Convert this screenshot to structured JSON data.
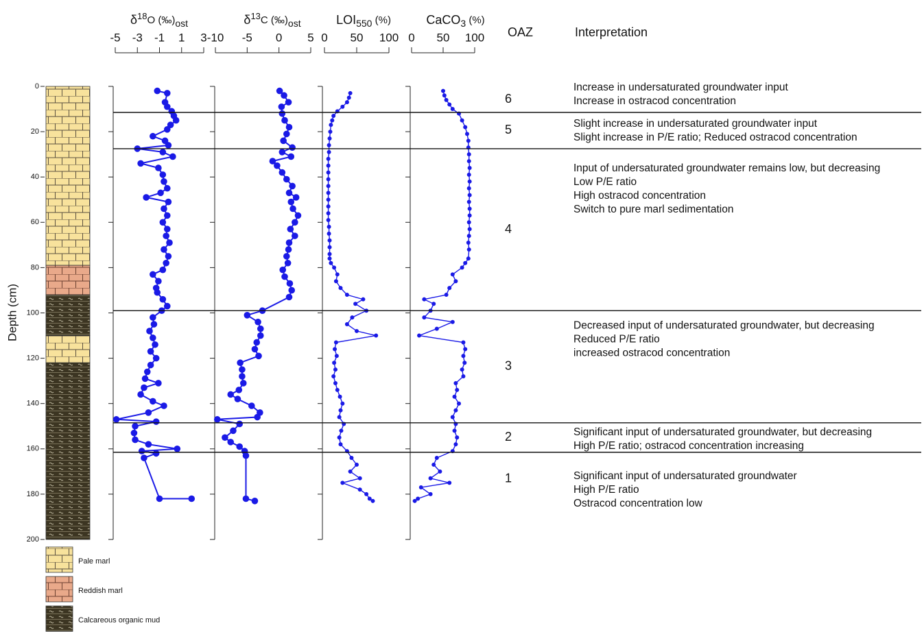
{
  "chart_data": [
    {
      "type": "line",
      "title": [
        "δ",
        "18",
        "O (‰)",
        "ost"
      ],
      "color": "#1a1ae6",
      "xlim": [
        -5,
        3
      ],
      "xticks": [
        -5,
        -3,
        -1,
        1,
        3
      ],
      "y": [
        2,
        3,
        7,
        9,
        11,
        13,
        15,
        17,
        19,
        22,
        24,
        26,
        27.5,
        29,
        31,
        34,
        36,
        39,
        42,
        45,
        47,
        49,
        51,
        54,
        57,
        60,
        63,
        66,
        69,
        72,
        75,
        78,
        81,
        83,
        86,
        89,
        91,
        94,
        97,
        99,
        102,
        105,
        108,
        111,
        114,
        117,
        120,
        123,
        126,
        129,
        131,
        133,
        136,
        139,
        141,
        144,
        147,
        148,
        150,
        153,
        156,
        158,
        160,
        161,
        162,
        164,
        182,
        182
      ],
      "values": [
        -1.2,
        -0.3,
        -0.5,
        -0.3,
        0.1,
        0.3,
        0.5,
        0,
        -0.3,
        -1.6,
        -0.5,
        -0.2,
        -3,
        -0.7,
        0.2,
        -2.7,
        -1.1,
        -0.7,
        -0.6,
        -0.3,
        -0.9,
        -2.2,
        -0.2,
        -0.6,
        -0.3,
        -0.7,
        -0.3,
        -0.4,
        -0.1,
        -0.6,
        -0.2,
        -0.4,
        -0.7,
        -1.6,
        -1.1,
        -1.3,
        -1.2,
        -0.7,
        -0.3,
        -0.8,
        -1.6,
        -1.5,
        -1.9,
        -1.6,
        -1.4,
        -1.8,
        -1.3,
        -1.8,
        -2.1,
        -2.3,
        -1.1,
        -2.4,
        -2.7,
        -1.6,
        -0.6,
        -2,
        -4.9,
        -1.3,
        -3.2,
        -3.3,
        -3.2,
        -2,
        0.6,
        -2.6,
        -1.3,
        -2.4,
        -1,
        1.9
      ]
    },
    {
      "type": "line",
      "title": [
        "δ",
        "13",
        "C (‰)",
        "ost"
      ],
      "color": "#1a1ae6",
      "xlim": [
        -10,
        5
      ],
      "xticks": [
        -10,
        -5,
        0,
        5
      ],
      "y": [
        2,
        4,
        7,
        9,
        12,
        15,
        18,
        21,
        24,
        27,
        29,
        31,
        33,
        35,
        38,
        41,
        44,
        47,
        49,
        51,
        54,
        57,
        60,
        63,
        66,
        69,
        72,
        75,
        78,
        81,
        84,
        87,
        90,
        93,
        99,
        101,
        104,
        107,
        110,
        113,
        116,
        119,
        122,
        125,
        128,
        131,
        134,
        136,
        138,
        141,
        144,
        146,
        147,
        149,
        152,
        155,
        157,
        159,
        161,
        163,
        182,
        183
      ],
      "values": [
        0.1,
        0.8,
        1.5,
        0.4,
        0.5,
        0.9,
        1.6,
        1.2,
        0.7,
        2.1,
        0.5,
        1.9,
        -1,
        -0.3,
        0.5,
        1.2,
        2.1,
        1.6,
        2.7,
        1.9,
        2.2,
        3,
        2.5,
        1.8,
        2.5,
        1.6,
        1.5,
        1.2,
        1.4,
        0.6,
        0.9,
        1.7,
        2,
        1.6,
        -2.6,
        -5,
        -3.3,
        -2.9,
        -2.9,
        -3.5,
        -3.8,
        -3.2,
        -6.1,
        -5.8,
        -5.8,
        -5.6,
        -6.3,
        -7.6,
        -6.5,
        -4.3,
        -3,
        -3.4,
        -9.7,
        -6.2,
        -7.2,
        -8.5,
        -7.6,
        -6.2,
        -5.4,
        -5.2,
        -5.2,
        -3.8
      ]
    },
    {
      "type": "line",
      "title": [
        "LOI",
        "550",
        " (%)"
      ],
      "color": "#1a1ae6",
      "xlim": [
        0,
        100
      ],
      "xticks": [
        0,
        50,
        100
      ],
      "y": [
        3,
        5,
        7,
        9,
        11,
        13,
        15,
        17,
        20,
        23,
        26,
        29,
        32,
        35,
        38,
        41,
        44,
        47,
        50,
        53,
        56,
        59,
        62,
        65,
        68,
        71,
        74,
        76,
        78,
        80,
        83,
        86,
        89,
        92,
        94,
        96,
        99,
        102,
        105,
        108,
        110,
        113,
        116,
        119,
        122,
        125,
        128,
        131,
        134,
        137,
        140,
        143,
        146,
        149,
        152,
        155,
        158,
        161,
        164,
        167,
        170,
        173,
        175,
        178,
        180,
        182,
        183
      ],
      "values": [
        40,
        38,
        35,
        28,
        20,
        14,
        12,
        10,
        9,
        8,
        7,
        7,
        6,
        6,
        6,
        6,
        6,
        6,
        6,
        6,
        6,
        6,
        7,
        7,
        8,
        8,
        8,
        8,
        10,
        15,
        20,
        18,
        25,
        35,
        60,
        48,
        65,
        43,
        35,
        50,
        80,
        18,
        16,
        19,
        15,
        17,
        14,
        17,
        20,
        24,
        28,
        25,
        23,
        30,
        26,
        23,
        25,
        35,
        42,
        50,
        40,
        55,
        28,
        55,
        65,
        70,
        75
      ]
    },
    {
      "type": "line",
      "title": [
        "CaCO",
        "3",
        " (%)"
      ],
      "color": "#1a1ae6",
      "xlim": [
        0,
        100
      ],
      "xticks": [
        0,
        50,
        100
      ],
      "y": [
        2,
        4,
        6,
        8,
        10,
        12,
        15,
        18,
        21,
        24,
        27,
        30,
        33,
        36,
        39,
        42,
        45,
        48,
        51,
        54,
        57,
        60,
        63,
        66,
        69,
        72,
        76,
        78,
        80,
        83,
        86,
        89,
        92,
        94,
        96,
        99,
        102,
        104,
        107,
        110,
        113,
        116,
        119,
        122,
        125,
        128,
        131,
        134,
        137,
        140,
        143,
        146,
        149,
        152,
        155,
        158,
        161,
        164,
        167,
        170,
        173,
        175,
        177,
        180,
        182,
        183
      ],
      "values": [
        50,
        52,
        55,
        60,
        65,
        75,
        80,
        85,
        88,
        90,
        90,
        91,
        91,
        92,
        91,
        92,
        91,
        92,
        91,
        92,
        92,
        91,
        92,
        91,
        90,
        91,
        90,
        85,
        80,
        65,
        70,
        60,
        55,
        20,
        35,
        30,
        20,
        65,
        40,
        12,
        82,
        85,
        82,
        84,
        80,
        82,
        70,
        72,
        68,
        75,
        70,
        65,
        70,
        68,
        72,
        70,
        65,
        40,
        35,
        45,
        30,
        60,
        15,
        30,
        10,
        5
      ]
    }
  ],
  "depth_axis": {
    "label": "Depth (cm)",
    "ylim": [
      0,
      200
    ],
    "yticks": [
      0,
      20,
      40,
      60,
      80,
      100,
      120,
      140,
      160,
      180,
      200
    ]
  },
  "lithology": {
    "legend": [
      "Pale marl",
      "Reddish marl",
      "Calcareous organic mud"
    ],
    "layers": [
      {
        "key": 0,
        "top": 0,
        "bottom": 79
      },
      {
        "key": 1,
        "top": 79,
        "bottom": 92
      },
      {
        "key": 2,
        "top": 92,
        "bottom": 110
      },
      {
        "key": 0,
        "top": 110,
        "bottom": 122
      },
      {
        "key": 2,
        "top": 122,
        "bottom": 200
      }
    ]
  },
  "zones": {
    "title": "OAZ",
    "header": "Interpretation",
    "boundaries": [
      11.5,
      27.5,
      99,
      148.5,
      161.5
    ],
    "items": [
      {
        "label": 6,
        "lines": [
          "Increase in undersaturated groundwater input",
          "Increase in ostracod concentration"
        ]
      },
      {
        "label": 5,
        "lines": [
          "Slight increase in undersaturated groundwater input",
          "Slight increase in P/E ratio; Reduced ostracod concentration"
        ]
      },
      {
        "label": 4,
        "lines": [
          "Input of undersaturated groundwater remains low, but decreasing",
          "Low P/E ratio",
          "High ostracod concentration",
          "Switch to pure marl sedimentation"
        ]
      },
      {
        "label": 3,
        "lines": [
          "Decreased input of undersaturated groundwater, but decreasing",
          "Reduced P/E ratio",
          "increased ostracod concentration"
        ]
      },
      {
        "label": 2,
        "lines": [
          "Significant input of undersaturated groundwater, but decreasing",
          "High P/E ratio; ostracod concentration increasing"
        ]
      },
      {
        "label": 1,
        "lines": [
          "Significant input of undersaturated groundwater",
          "High P/E ratio",
          "Ostracod concentration low"
        ]
      }
    ]
  }
}
